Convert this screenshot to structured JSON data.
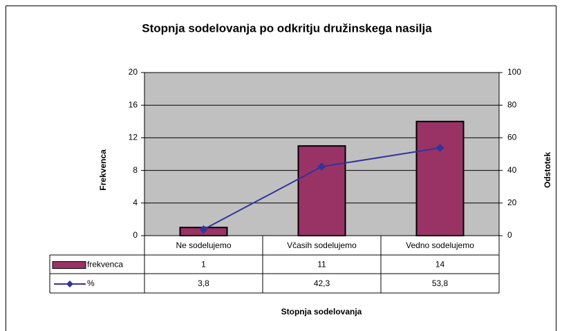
{
  "chart_data": {
    "type": "bar",
    "title": "Stopnja sodelovanja po odkritju družinskega nasilja",
    "x_label": "Stopnja sodelovanja",
    "y_label": "Frekvenca",
    "y2_label": "Odstotek",
    "categories": [
      "Ne sodelujemo",
      "Včasih sodelujemo",
      "Vedno sodelujemo"
    ],
    "series": [
      {
        "name": "frekvenca",
        "type": "bar",
        "color": "#993366",
        "values": [
          1,
          11,
          14
        ]
      },
      {
        "name": "%",
        "type": "line",
        "axis": "y2",
        "color": "#333399",
        "values": [
          3.8,
          42.3,
          53.8
        ],
        "value_labels": [
          "3,8",
          "42,3",
          "53,8"
        ]
      }
    ],
    "ylim": [
      0,
      20
    ],
    "yticks": [
      0,
      4,
      8,
      12,
      16,
      20
    ],
    "y2lim": [
      0,
      100
    ],
    "y2ticks": [
      0,
      20,
      40,
      60,
      80,
      100
    ],
    "grid": true,
    "plot_background": "#c0c0c0"
  }
}
